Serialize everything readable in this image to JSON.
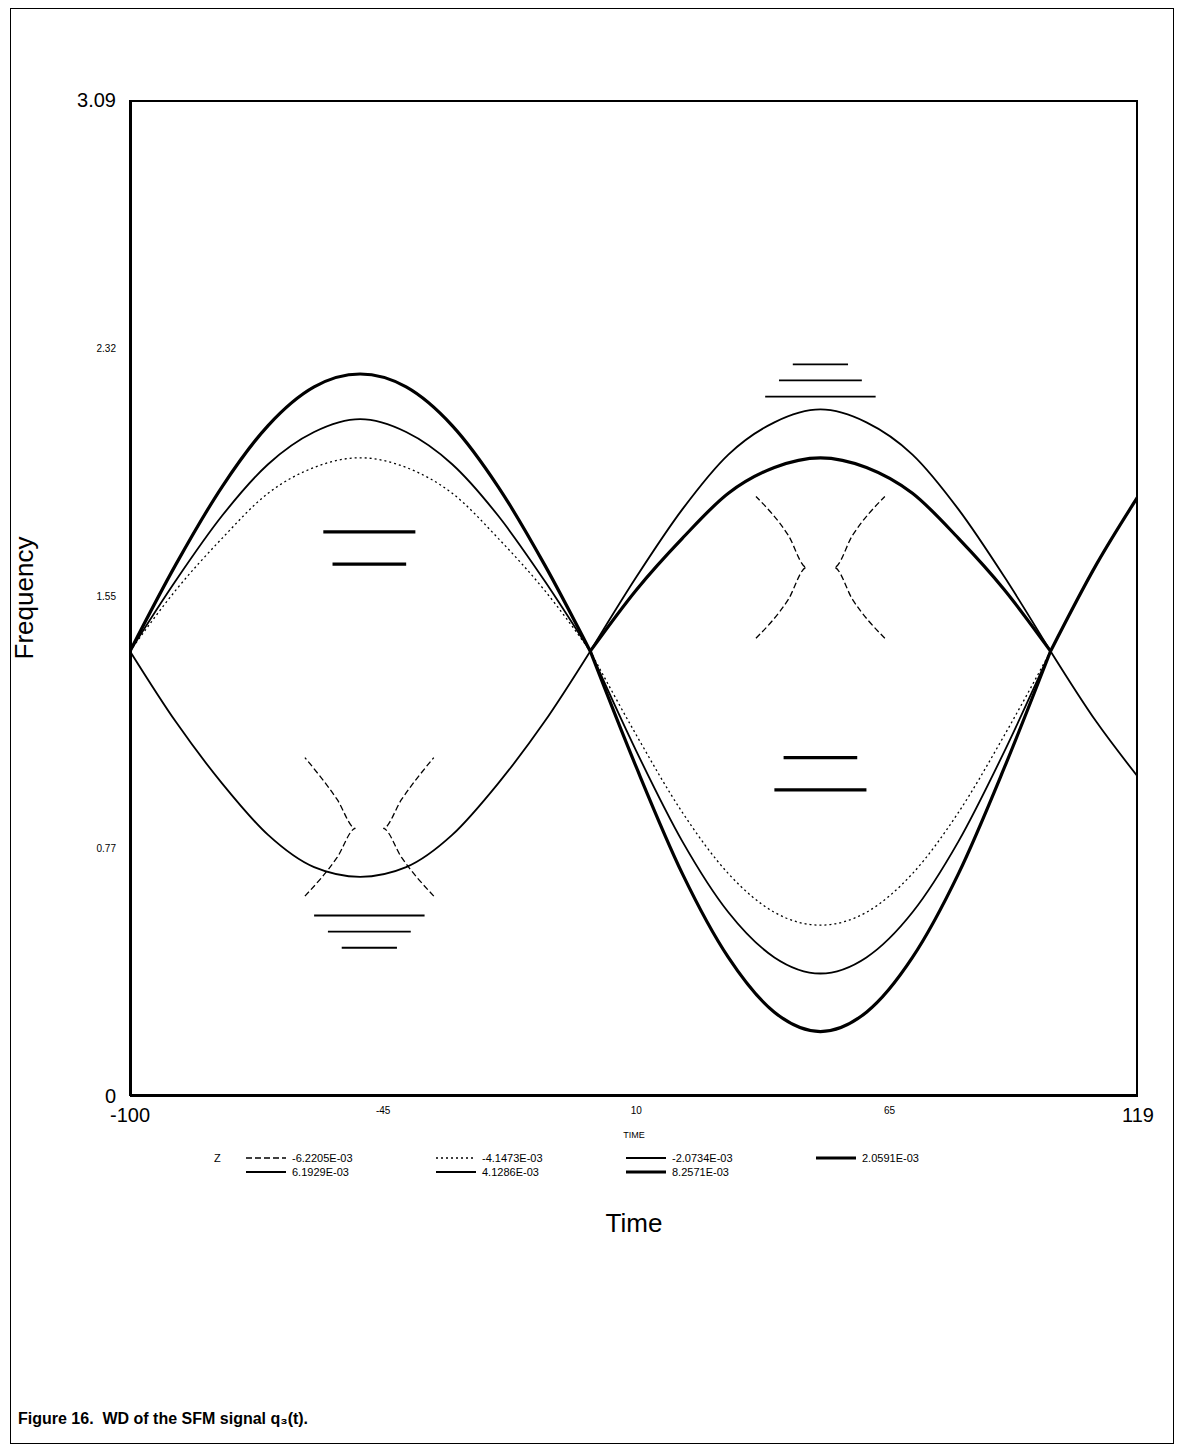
{
  "chart_data": {
    "type": "line",
    "title": "Figure 16.  WD of the SFM signal q₃(t).",
    "x_label": "Time",
    "x_axis_caption": "TIME",
    "y_label": "Frequency",
    "legend_title": "Z",
    "legend": "bottom",
    "xlim": [
      -100,
      119
    ],
    "xticks": [
      -100,
      -45,
      10,
      65,
      119
    ],
    "ylim": [
      0,
      3.09
    ],
    "yticks": [
      0,
      0.77,
      1.55,
      2.32,
      3.09
    ],
    "grid": false,
    "series": [
      {
        "name": "-6.2205E-03",
        "color": "#000000",
        "line_style": "dashed",
        "segments": [
          {
            "x": [
              -62,
              -55,
              -51,
              -55,
              -62
            ],
            "y": [
              0.62,
              0.74,
              0.83,
              0.92,
              1.05
            ]
          },
          {
            "x": [
              -34,
              -41,
              -45,
              -41,
              -34
            ],
            "y": [
              0.62,
              0.74,
              0.83,
              0.92,
              1.05
            ]
          },
          {
            "x": [
              36,
              43,
              47,
              43,
              36
            ],
            "y": [
              1.42,
              1.54,
              1.64,
              1.74,
              1.86
            ]
          },
          {
            "x": [
              64,
              57,
              53,
              57,
              64
            ],
            "y": [
              1.42,
              1.54,
              1.64,
              1.74,
              1.86
            ]
          }
        ]
      },
      {
        "name": "-4.1473E-03",
        "color": "#000000",
        "line_style": "dotted",
        "segments": [
          {
            "x": [
              -100,
              -90,
              -80,
              -70,
              -60,
              -50,
              -40,
              -30,
              -20,
              -10,
              0
            ],
            "y": [
              1.38,
              1.57,
              1.73,
              1.87,
              1.95,
              1.98,
              1.95,
              1.87,
              1.73,
              1.57,
              1.38
            ]
          },
          {
            "x": [
              0,
              10,
              20,
              30,
              40,
              50,
              60,
              70,
              80,
              90,
              100
            ],
            "y": [
              1.38,
              1.12,
              0.88,
              0.69,
              0.57,
              0.53,
              0.57,
              0.69,
              0.88,
              1.12,
              1.38
            ]
          }
        ]
      },
      {
        "name": "-2.0734E-03",
        "color": "#000000",
        "line_style": "solid",
        "segments": [
          {
            "x": [
              -60,
              -36
            ],
            "y": [
              0.56,
              0.56
            ]
          },
          {
            "x": [
              -57,
              -39
            ],
            "y": [
              0.51,
              0.51
            ]
          },
          {
            "x": [
              -54,
              -42
            ],
            "y": [
              0.46,
              0.46
            ]
          },
          {
            "x": [
              38,
              62
            ],
            "y": [
              2.17,
              2.17
            ]
          },
          {
            "x": [
              41,
              59
            ],
            "y": [
              2.22,
              2.22
            ]
          },
          {
            "x": [
              44,
              56
            ],
            "y": [
              2.27,
              2.27
            ]
          }
        ]
      },
      {
        "name": "2.0591E-03",
        "color": "#000000",
        "line_style": "thick",
        "segments": [
          {
            "x": [
              -100,
              -90,
              -80,
              -70,
              -60,
              -50,
              -40,
              -30,
              -20,
              -10,
              0
            ],
            "y": [
              1.38,
              1.65,
              1.89,
              2.08,
              2.2,
              2.24,
              2.2,
              2.08,
              1.89,
              1.65,
              1.38
            ]
          },
          {
            "x": [
              0,
              10,
              20,
              30,
              40,
              50,
              60,
              70,
              80,
              90,
              100
            ],
            "y": [
              1.38,
              1.02,
              0.69,
              0.43,
              0.26,
              0.2,
              0.26,
              0.43,
              0.69,
              1.02,
              1.38
            ]
          },
          {
            "x": [
              100,
              110,
              119
            ],
            "y": [
              1.38,
              1.65,
              1.86
            ]
          }
        ]
      },
      {
        "name": "6.1929E-03",
        "color": "#000000",
        "line_style": "solid",
        "segments": [
          {
            "x": [
              -100,
              -90,
              -80,
              -70,
              -60,
              -50,
              -40,
              -30,
              -20,
              -10,
              0
            ],
            "y": [
              1.38,
              1.6,
              1.8,
              1.96,
              2.06,
              2.1,
              2.06,
              1.96,
              1.8,
              1.6,
              1.38
            ]
          },
          {
            "x": [
              0,
              10,
              20,
              30,
              40,
              50,
              60,
              70,
              80,
              90,
              100
            ],
            "y": [
              1.38,
              1.07,
              0.79,
              0.57,
              0.43,
              0.38,
              0.43,
              0.57,
              0.79,
              1.07,
              1.38
            ]
          }
        ]
      },
      {
        "name": "4.1286E-03",
        "color": "#000000",
        "line_style": "solid",
        "segments": [
          {
            "x": [
              -100,
              -90,
              -80,
              -70,
              -60,
              -50,
              -40,
              -30,
              -20,
              -10,
              0
            ],
            "y": [
              1.38,
              1.16,
              0.97,
              0.81,
              0.71,
              0.68,
              0.71,
              0.81,
              0.97,
              1.16,
              1.38
            ]
          },
          {
            "x": [
              0,
              10,
              20,
              30,
              40,
              50,
              60,
              70,
              80,
              90,
              100
            ],
            "y": [
              1.38,
              1.61,
              1.82,
              1.99,
              2.09,
              2.13,
              2.09,
              1.99,
              1.82,
              1.61,
              1.38
            ]
          },
          {
            "x": [
              100,
              110,
              119
            ],
            "y": [
              1.38,
              1.16,
              0.99
            ]
          }
        ]
      },
      {
        "name": "8.2571E-03",
        "color": "#000000",
        "line_style": "thick",
        "segments": [
          {
            "x": [
              0,
              10,
              20,
              30,
              40,
              50,
              60,
              70,
              80,
              90,
              100
            ],
            "y": [
              1.38,
              1.57,
              1.73,
              1.87,
              1.95,
              1.98,
              1.95,
              1.87,
              1.73,
              1.57,
              1.38
            ]
          },
          {
            "x": [
              -58,
              -38
            ],
            "y": [
              1.75,
              1.75
            ]
          },
          {
            "x": [
              -56,
              -40
            ],
            "y": [
              1.65,
              1.65
            ]
          },
          {
            "x": [
              40,
              60
            ],
            "y": [
              0.95,
              0.95
            ]
          },
          {
            "x": [
              42,
              58
            ],
            "y": [
              1.05,
              1.05
            ]
          }
        ]
      }
    ]
  }
}
